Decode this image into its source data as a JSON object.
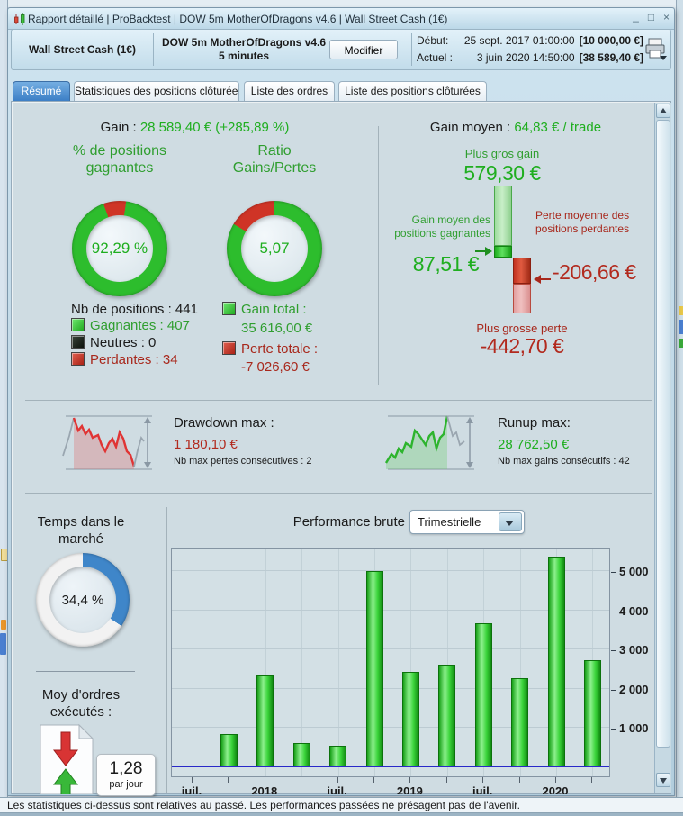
{
  "window": {
    "title": "Rapport détaillé | ProBacktest | DOW 5m MotherOfDragons v4.6 | Wall Street Cash (1€)",
    "minimize": "_",
    "maximize": "□",
    "close": "×"
  },
  "header": {
    "account": "Wall Street Cash (1€)",
    "system": "DOW 5m MotherOfDragons v4.6",
    "timeframe": "5 minutes",
    "modify_button": "Modifier",
    "start_label": "Début:",
    "start_datetime": "25 sept. 2017 01:00:00",
    "start_capital": "[10 000,00 €]",
    "current_label": "Actuel :",
    "current_datetime": "3 juin 2020 14:50:00",
    "current_capital": "[38 589,40 €]"
  },
  "tabs": {
    "items": [
      {
        "label": "Résumé"
      },
      {
        "label": "Statistiques des positions clôturées"
      },
      {
        "label": "Liste des ordres"
      },
      {
        "label": "Liste des positions clôturées"
      }
    ],
    "active": "Résumé"
  },
  "summary": {
    "gain_label": "Gain :",
    "gain_value": "28 589,40 € (+285,89 %)",
    "win_pct": {
      "title": "% de positions gagnantes",
      "value": "92,29 %",
      "donut": {
        "from_deg": -20,
        "deg": 27.8,
        "c1": "#cf3426",
        "c2": "#2dbd2d"
      }
    },
    "ratio": {
      "title": "Ratio Gains/Pertes",
      "value": "5,07",
      "donut": {
        "from_deg": -59,
        "deg": 59,
        "c1": "#cf3426",
        "c2": "#2dbd2d"
      }
    },
    "legend": {
      "total": "Nb de positions : 441",
      "winning": "Gagnantes : 407",
      "neutral": "Neutres : 0",
      "losing": "Perdantes : 34"
    },
    "totals": {
      "gain_label": "Gain total :",
      "gain_value": "35 616,00 €",
      "loss_label": "Perte totale :",
      "loss_value": "-7 026,60 €"
    }
  },
  "gain_moyen": {
    "label": "Gain moyen :",
    "value": "64,83 € / trade",
    "biggest_gain_label": "Plus gros gain",
    "biggest_gain": "579,30 €",
    "avg_win_label": "Gain moyen des positions gagnantes",
    "avg_win": "87,51 €",
    "avg_loss_label": "Perte moyenne des positions perdantes",
    "avg_loss": "-206,66 €",
    "biggest_loss_label": "Plus grosse perte",
    "biggest_loss": "-442,70 €"
  },
  "drawdown": {
    "label": "Drawdown max :",
    "value": "1 180,10 €",
    "note": "Nb max pertes consécutives : 2"
  },
  "runup": {
    "label": "Runup max:",
    "value": "28 762,50 €",
    "note": "Nb max gains consécutifs : 42"
  },
  "time_in_market": {
    "title": "Temps dans le marché",
    "value": "34,4 %",
    "donut": {
      "from_deg": 0,
      "deg": 124,
      "c1": "#3f86c9",
      "c2": "#f2f2f2"
    }
  },
  "orders": {
    "title": "Moy d'ordres exécutés :",
    "value": "1,28",
    "unit": "par jour"
  },
  "performance": {
    "label": "Performance brute",
    "period": "Trimestrielle",
    "chart_data": {
      "type": "bar",
      "title": "Performance brute (Trimestrielle)",
      "values": [
        850,
        2350,
        620,
        560,
        5000,
        2430,
        2620,
        3670,
        2280,
        5370,
        2740
      ],
      "yticks": [
        {
          "v": 1000,
          "label": "1 000"
        },
        {
          "v": 2000,
          "label": "2 000"
        },
        {
          "v": 3000,
          "label": "3 000"
        },
        {
          "v": 4000,
          "label": "4 000"
        },
        {
          "v": 5000,
          "label": "5 000"
        }
      ],
      "xticks": [
        {
          "i": 0,
          "label": "juil."
        },
        {
          "i": 2,
          "label": "2018"
        },
        {
          "i": 4,
          "label": "juil."
        },
        {
          "i": 6,
          "label": "2019"
        },
        {
          "i": 8,
          "label": "juil."
        },
        {
          "i": 10,
          "label": "2020"
        }
      ],
      "ylim": [
        0,
        5600
      ],
      "bar_color": "#2ecc2e",
      "baseline_color": "#2929c8",
      "grid": true,
      "legend": "none"
    }
  },
  "status_bar": "Les statistiques ci-dessus sont relatives au passé. Les performances passées ne présagent pas de l'avenir."
}
